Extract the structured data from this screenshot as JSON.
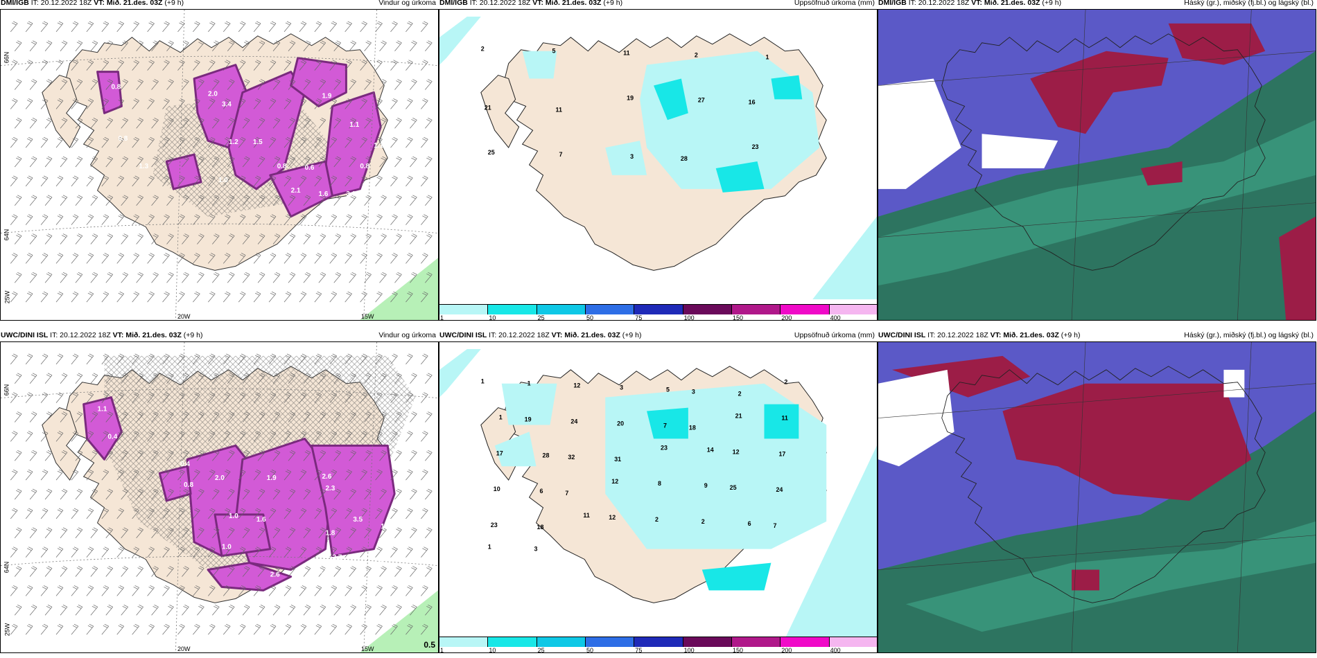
{
  "rows": [
    {
      "panels": [
        {
          "model": "DMI/IGB",
          "it": "IT: 20.12.2022 18Z",
          "vt_label": "VT:",
          "vt": "Mið. 21.des. 03Z",
          "lead": "(+9 h)",
          "product": "Vindur og úrkoma",
          "kind": "wind",
          "axis": {
            "lon_a": "20W",
            "lon_b": "15W",
            "lat_a": "66N",
            "lat_b": "64N",
            "lat_c": "25W"
          },
          "values": [
            "2.0",
            "1.9",
            "0.8",
            "3.4",
            "1.2",
            "1.5",
            "1.1",
            "1.0",
            "0.8",
            "0.6",
            "3.0",
            "1.6",
            "2.1",
            "1.3",
            "0.8",
            "0.8",
            "1.1"
          ]
        },
        {
          "model": "DMI/IGB",
          "it": "IT: 20.12.2022 18Z",
          "vt_label": "VT:",
          "vt": "Mið. 21.des. 03Z",
          "lead": "(+9 h)",
          "product": "Uppsöfnuð úrkoma (mm)",
          "kind": "precip",
          "values": [
            "2",
            "5",
            "11",
            "2",
            "1",
            "21",
            "11",
            "19",
            "27",
            "16",
            "25",
            "7",
            "3",
            "28",
            "23"
          ],
          "colorbar": [
            "1",
            "10",
            "25",
            "50",
            "75",
            "100",
            "150",
            "200",
            "400"
          ]
        },
        {
          "model": "DMI/IGB",
          "it": "IT: 20.12.2022 18Z",
          "vt_label": "VT:",
          "vt": "Mið. 21.des. 03Z",
          "lead": "(+9 h)",
          "product": "Háský (gr.), miðský (fj.bl.) og lágský (bl.)",
          "kind": "cloud"
        }
      ]
    },
    {
      "panels": [
        {
          "model": "UWC/DINI ISL",
          "it": "IT: 20.12.2022 18Z",
          "vt_label": "VT:",
          "vt": "Mið. 21.des. 03Z",
          "lead": "(+9 h)",
          "product": "Vindur og úrkoma",
          "kind": "wind",
          "axis": {
            "lon_a": "20W",
            "lon_b": "15W",
            "lat_a": "66N",
            "lat_b": "64N",
            "lat_c": "25W"
          },
          "values": [
            "1.1",
            "0.4",
            "2.0",
            "1.9",
            "2.6",
            "2.3",
            "1.0",
            "1.6",
            "1.8",
            "3.5",
            "2.7",
            "1.5",
            "2.6",
            "3.7",
            "1.0",
            "0.8",
            "0.4",
            "2.7",
            "1.9"
          ],
          "note": "0.5"
        },
        {
          "model": "UWC/DINI ISL",
          "it": "IT: 20.12.2022 18Z",
          "vt_label": "VT:",
          "vt": "Mið. 21.des. 03Z",
          "lead": "(+9 h)",
          "product": "Uppsöfnuð úrkoma (mm)",
          "kind": "precip",
          "values": [
            "1",
            "1",
            "12",
            "3",
            "5",
            "3",
            "2",
            "2",
            "1",
            "19",
            "24",
            "20",
            "7",
            "18",
            "21",
            "11",
            "17",
            "28",
            "32",
            "31",
            "23",
            "14",
            "12",
            "17",
            "10",
            "6",
            "7",
            "12",
            "8",
            "9",
            "25",
            "24",
            "23",
            "18",
            "11",
            "12",
            "2",
            "2",
            "6",
            "7",
            "1",
            "3"
          ],
          "colorbar": [
            "1",
            "10",
            "25",
            "50",
            "75",
            "100",
            "150",
            "200",
            "400"
          ]
        },
        {
          "model": "UWC/DINI ISL",
          "it": "IT: 20.12.2022 18Z",
          "vt_label": "VT:",
          "vt": "Mið. 21.des. 03Z",
          "lead": "(+9 h)",
          "product": "Háský (gr.), miðský (fj.bl.) og lágský (bl.)",
          "kind": "cloud"
        }
      ]
    }
  ],
  "colors": {
    "land": "#f5e6d6",
    "precip_light": "#b8f6f6",
    "precip_mid": "#18e7e7",
    "wind_precip": "#d25ad6",
    "wind_precip_dark": "#7a2a7e",
    "green": "#b7f0b7",
    "cloud_low": "#5b59c7",
    "cloud_mid": "#2d7460",
    "cloud_high": "#9c1d47",
    "cloud_mid_light": "#3fa88a"
  },
  "colorbar_colors": [
    "#b8f6f6",
    "#18e7e7",
    "#0fc8e6",
    "#2e6ee6",
    "#1f2ab8",
    "#6a0a5a",
    "#b0188a",
    "#f00ac8",
    "#f5b6f0"
  ]
}
